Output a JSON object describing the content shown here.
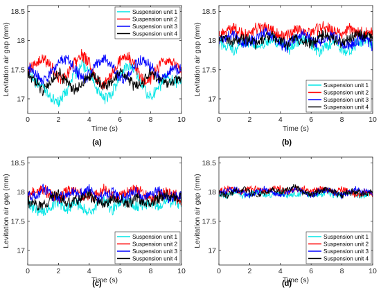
{
  "chart_data": [
    {
      "type": "line",
      "panel_label": "(a)",
      "xlabel": "Time (s)",
      "ylabel": "Levitation air gap (mm)",
      "xlim": [
        0,
        10
      ],
      "ylim": [
        16.75,
        18.6
      ],
      "xticks": [
        0,
        2,
        4,
        6,
        8,
        10
      ],
      "yticks": [
        17,
        17.5,
        18,
        18.5
      ],
      "grid": false,
      "legend_position": "top-right",
      "x": [
        0,
        0.5,
        1,
        1.5,
        2,
        2.5,
        3,
        3.5,
        4,
        4.5,
        5,
        5.5,
        6,
        6.5,
        7,
        7.5,
        8,
        8.5,
        9,
        9.5,
        10
      ],
      "series": [
        {
          "name": "Suspension unit 1",
          "color": "#00e5e5",
          "values": [
            17.5,
            17.3,
            17.2,
            17.0,
            16.95,
            17.1,
            17.4,
            17.6,
            17.5,
            17.2,
            17.0,
            17.1,
            17.4,
            17.6,
            17.5,
            17.2,
            17.0,
            17.2,
            17.4,
            17.3,
            17.3
          ]
        },
        {
          "name": "Suspension unit 2",
          "color": "#ff0000",
          "values": [
            17.5,
            17.6,
            17.7,
            17.55,
            17.35,
            17.4,
            17.6,
            17.75,
            17.6,
            17.3,
            17.25,
            17.45,
            17.65,
            17.75,
            17.55,
            17.3,
            17.35,
            17.55,
            17.7,
            17.6,
            17.45
          ]
        },
        {
          "name": "Suspension unit 3",
          "color": "#0000ff",
          "values": [
            17.55,
            17.45,
            17.3,
            17.45,
            17.6,
            17.7,
            17.55,
            17.35,
            17.4,
            17.6,
            17.7,
            17.55,
            17.35,
            17.4,
            17.6,
            17.7,
            17.55,
            17.35,
            17.4,
            17.55,
            17.5
          ]
        },
        {
          "name": "Suspension unit 4",
          "color": "#000000",
          "values": [
            17.45,
            17.3,
            17.15,
            17.3,
            17.45,
            17.3,
            17.15,
            17.25,
            17.4,
            17.35,
            17.2,
            17.3,
            17.45,
            17.35,
            17.2,
            17.3,
            17.45,
            17.35,
            17.25,
            17.3,
            17.35
          ]
        }
      ]
    },
    {
      "type": "line",
      "panel_label": "(b)",
      "xlabel": "Time (s)",
      "ylabel": "Levitation air gap (mm)",
      "xlim": [
        0,
        10
      ],
      "ylim": [
        16.75,
        18.6
      ],
      "xticks": [
        0,
        2,
        4,
        6,
        8,
        10
      ],
      "yticks": [
        17,
        17.5,
        18,
        18.5
      ],
      "grid": false,
      "legend_position": "bottom-right",
      "x": [
        0,
        0.5,
        1,
        1.5,
        2,
        2.5,
        3,
        3.5,
        4,
        4.5,
        5,
        5.5,
        6,
        6.5,
        7,
        7.5,
        8,
        8.5,
        9,
        9.5,
        10
      ],
      "series": [
        {
          "name": "Suspension unit 1",
          "color": "#00e5e5",
          "values": [
            17.95,
            17.9,
            17.85,
            17.95,
            18.0,
            17.9,
            17.95,
            18.05,
            17.95,
            17.85,
            17.95,
            18.05,
            17.95,
            17.8,
            17.9,
            18.0,
            17.85,
            17.8,
            17.95,
            18.05,
            17.95
          ]
        },
        {
          "name": "Suspension unit 2",
          "color": "#ff0000",
          "values": [
            18.1,
            18.15,
            18.2,
            18.1,
            18.15,
            18.2,
            18.25,
            18.15,
            18.05,
            18.1,
            18.2,
            18.15,
            18.1,
            18.2,
            18.25,
            18.15,
            18.1,
            18.2,
            18.15,
            18.1,
            18.15
          ]
        },
        {
          "name": "Suspension unit 3",
          "color": "#0000ff",
          "values": [
            18.0,
            18.05,
            18.1,
            18.0,
            17.95,
            18.05,
            18.15,
            18.05,
            17.95,
            17.9,
            18.05,
            18.1,
            18.0,
            17.95,
            18.05,
            18.1,
            17.95,
            17.9,
            18.0,
            18.05,
            17.9
          ]
        },
        {
          "name": "Suspension unit 4",
          "color": "#000000",
          "values": [
            18.05,
            18.0,
            17.95,
            18.05,
            18.0,
            17.95,
            18.05,
            18.1,
            18.0,
            17.95,
            18.05,
            18.0,
            17.95,
            18.05,
            18.1,
            18.0,
            17.95,
            18.05,
            18.1,
            18.05,
            18.1
          ]
        }
      ]
    },
    {
      "type": "line",
      "panel_label": "(c)",
      "xlabel": "Time (s)",
      "ylabel": "Levitation air gap (mm)",
      "xlim": [
        0,
        10
      ],
      "ylim": [
        16.75,
        18.6
      ],
      "xticks": [
        0,
        2,
        4,
        6,
        8,
        10
      ],
      "yticks": [
        17,
        17.5,
        18,
        18.5
      ],
      "grid": false,
      "legend_position": "bottom-right",
      "x": [
        0,
        0.5,
        1,
        1.5,
        2,
        2.5,
        3,
        3.5,
        4,
        4.5,
        5,
        5.5,
        6,
        6.5,
        7,
        7.5,
        8,
        8.5,
        9,
        9.5,
        10
      ],
      "series": [
        {
          "name": "Suspension unit 1",
          "color": "#00e5e5",
          "values": [
            17.8,
            17.7,
            17.65,
            17.75,
            17.85,
            17.7,
            17.8,
            17.75,
            17.65,
            17.8,
            17.85,
            17.7,
            17.8,
            17.85,
            17.75,
            17.8,
            17.85,
            17.75,
            17.8,
            17.85,
            17.8
          ]
        },
        {
          "name": "Suspension unit 2",
          "color": "#ff0000",
          "values": [
            17.95,
            18.0,
            18.05,
            17.95,
            17.9,
            18.0,
            18.05,
            17.95,
            17.9,
            17.95,
            18.05,
            17.95,
            17.9,
            18.0,
            18.05,
            17.95,
            17.9,
            17.95,
            18.0,
            17.95,
            17.85
          ]
        },
        {
          "name": "Suspension unit 3",
          "color": "#0000ff",
          "values": [
            17.9,
            17.95,
            18.05,
            17.95,
            17.9,
            17.95,
            18.0,
            17.95,
            18.05,
            17.9,
            17.95,
            18.0,
            17.9,
            17.95,
            18.0,
            17.9,
            17.95,
            18.0,
            17.95,
            17.9,
            17.95
          ]
        },
        {
          "name": "Suspension unit 4",
          "color": "#000000",
          "values": [
            17.85,
            17.8,
            17.75,
            17.9,
            17.95,
            17.8,
            17.85,
            17.9,
            17.95,
            17.85,
            17.8,
            17.9,
            17.85,
            17.8,
            17.9,
            17.85,
            17.8,
            17.9,
            17.95,
            17.9,
            17.9
          ]
        }
      ]
    },
    {
      "type": "line",
      "panel_label": "(d)",
      "xlabel": "Time (s)",
      "ylabel": "Levitation air gap (mm)",
      "xlim": [
        0,
        10
      ],
      "ylim": [
        16.75,
        18.6
      ],
      "xticks": [
        0,
        2,
        4,
        6,
        8,
        10
      ],
      "yticks": [
        17,
        17.5,
        18,
        18.5
      ],
      "grid": false,
      "legend_position": "bottom-right",
      "x": [
        0,
        0.5,
        1,
        1.5,
        2,
        2.5,
        3,
        3.5,
        4,
        4.5,
        5,
        5.5,
        6,
        6.5,
        7,
        7.5,
        8,
        8.5,
        9,
        9.5,
        10
      ],
      "series": [
        {
          "name": "Suspension unit 1",
          "color": "#00e5e5",
          "values": [
            17.95,
            17.95,
            18.0,
            17.95,
            17.95,
            18.0,
            17.95,
            17.95,
            18.0,
            17.95,
            17.95,
            18.0,
            17.95,
            17.95,
            18.0,
            17.95,
            17.95,
            18.0,
            17.95,
            17.95,
            18.0
          ]
        },
        {
          "name": "Suspension unit 2",
          "color": "#ff0000",
          "values": [
            18.0,
            18.05,
            18.05,
            18.0,
            18.05,
            18.05,
            18.0,
            18.05,
            18.05,
            18.0,
            18.05,
            18.05,
            18.0,
            18.05,
            18.05,
            18.0,
            18.05,
            18.0,
            17.95,
            18.0,
            17.95
          ]
        },
        {
          "name": "Suspension unit 3",
          "color": "#0000ff",
          "values": [
            18.0,
            18.0,
            18.05,
            18.0,
            17.95,
            18.0,
            18.05,
            18.0,
            17.95,
            18.0,
            18.05,
            18.0,
            17.95,
            18.0,
            18.05,
            18.0,
            17.95,
            18.0,
            18.05,
            18.0,
            18.0
          ]
        },
        {
          "name": "Suspension unit 4",
          "color": "#000000",
          "values": [
            18.0,
            17.95,
            18.0,
            18.05,
            18.0,
            17.95,
            18.0,
            18.05,
            18.0,
            18.05,
            18.1,
            18.0,
            17.95,
            18.0,
            18.05,
            18.0,
            17.95,
            18.0,
            18.0,
            17.95,
            18.0
          ]
        }
      ]
    }
  ]
}
